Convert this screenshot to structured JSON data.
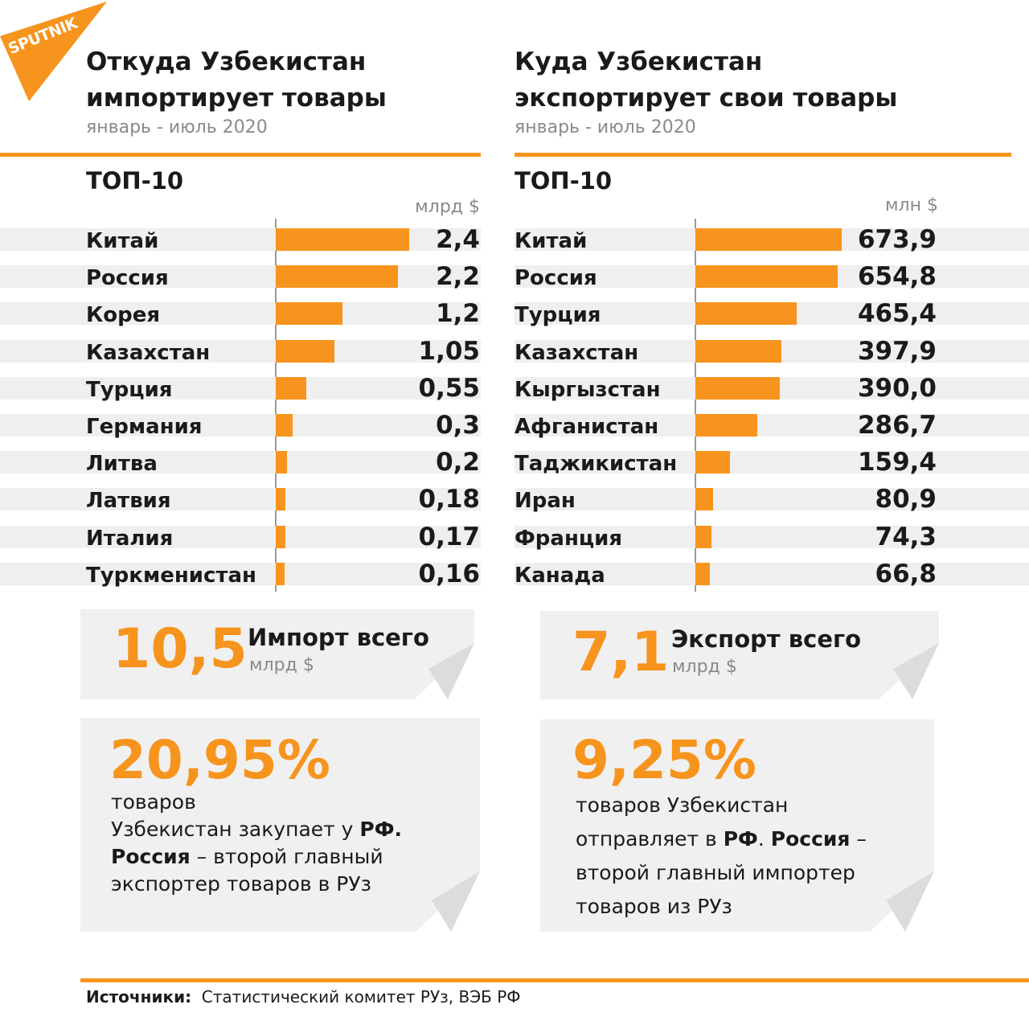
{
  "colors": {
    "accent": "#f7941d",
    "stripe": "#efefef",
    "muted": "#8a8a8a",
    "card": "#f0f0f0"
  },
  "logo": {
    "text": "SPUTNIK"
  },
  "import_panel": {
    "title_line1": "Откуда Узбекистан",
    "title_line2": "импортирует товары",
    "period": "январь - июль 2020",
    "top_label": "ТОП-10",
    "unit": "млрд $"
  },
  "export_panel": {
    "title_line1": "Куда Узбекистан",
    "title_line2": "экспортирует свои товары",
    "period": "январь - июль 2020",
    "top_label": "ТОП-10",
    "unit": "млн $"
  },
  "chart_data": [
    {
      "type": "bar",
      "orientation": "horizontal",
      "title": "Откуда Узбекистан импортирует товары",
      "unit": "млрд $",
      "categories": [
        "Китай",
        "Россия",
        "Корея",
        "Казахстан",
        "Турция",
        "Германия",
        "Литва",
        "Латвия",
        "Италия",
        "Туркменистан"
      ],
      "values": [
        2.4,
        2.2,
        1.2,
        1.05,
        0.55,
        0.3,
        0.2,
        0.18,
        0.17,
        0.16
      ],
      "value_labels": [
        "2,4",
        "2,2",
        "1,2",
        "1,05",
        "0,55",
        "0,3",
        "0,2",
        "0,18",
        "0,17",
        "0,16"
      ]
    },
    {
      "type": "bar",
      "orientation": "horizontal",
      "title": "Куда Узбекистан экспортирует свои товары",
      "unit": "млн $",
      "categories": [
        "Китай",
        "Россия",
        "Турция",
        "Казахстан",
        "Кыргызстан",
        "Афганистан",
        "Таджикистан",
        "Иран",
        "Франция",
        "Канада"
      ],
      "values": [
        673.9,
        654.8,
        465.4,
        397.9,
        390.0,
        286.7,
        159.4,
        80.9,
        74.3,
        66.8
      ],
      "value_labels": [
        "673,9",
        "654,8",
        "465,4",
        "397,9",
        "390,0",
        "286,7",
        "159,4",
        "80,9",
        "74,3",
        "66,8"
      ]
    }
  ],
  "import_total": {
    "value": "10,5",
    "label": "Импорт всего",
    "unit": "млрд $"
  },
  "export_total": {
    "value": "7,1",
    "label": "Экспорт всего",
    "unit": "млрд $"
  },
  "import_share": {
    "value": "20,95%",
    "text_1": "товаров",
    "text_2": "Узбекистан закупает у ",
    "bold_1": "РФ.",
    "bold_2": "Россия",
    "text_3": " – второй главный",
    "text_4": "экспортер товаров в РУз"
  },
  "export_share": {
    "value": "9,25%",
    "text_1": "товаров Узбекистан",
    "text_2": "отправляет в ",
    "bold_1": "РФ",
    "text_dot": ". ",
    "bold_2": "Россия",
    "text_3": " –",
    "text_4": "второй главный импортер",
    "text_5": "товаров из РУз"
  },
  "footer": {
    "label": "Источники:",
    "text": "Статистический комитет РУз, ВЭБ РФ"
  }
}
